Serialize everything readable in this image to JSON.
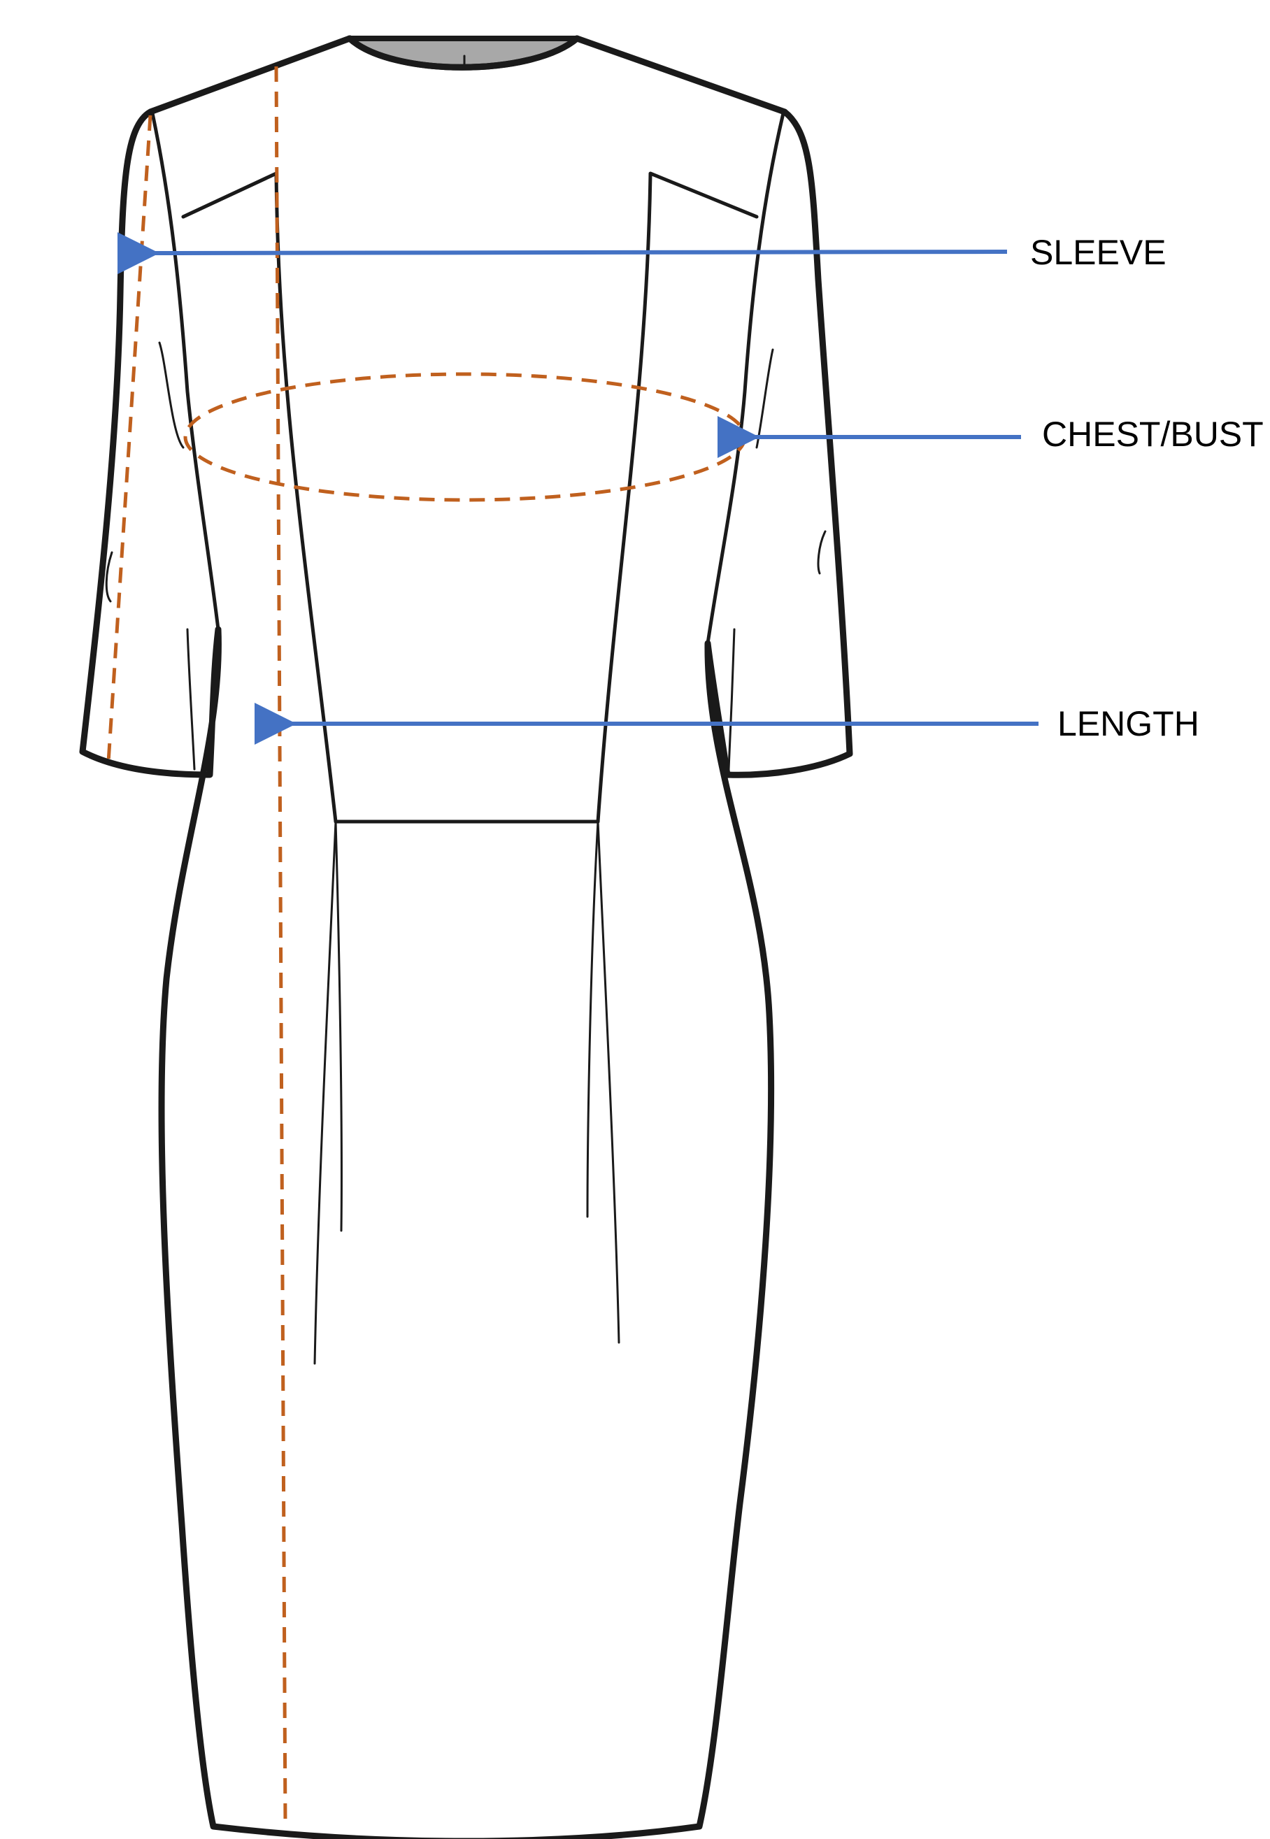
{
  "labels": {
    "sleeve": "SLEEVE",
    "chest_bust": "CHEST/BUST",
    "length": "LENGTH"
  },
  "colors": {
    "outline": "#1a1a1a",
    "measure_guide": "#c0601e",
    "arrow": "#4472c4",
    "neck_fill": "#a8a8a8",
    "background": "#ffffff"
  },
  "icons": {
    "arrow_head": "arrow-left-icon"
  }
}
